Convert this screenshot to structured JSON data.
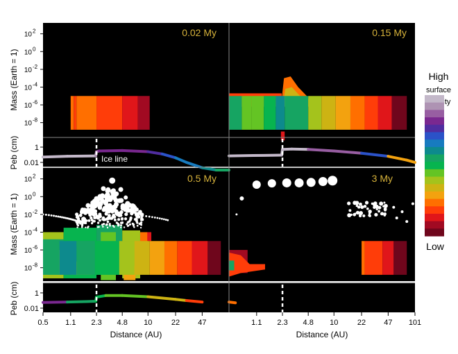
{
  "chart_data": {
    "type": "heatmap",
    "title": "",
    "xlabel": "Distance (AU)",
    "ylabel_mass": "Mass (Earth = 1)",
    "ylabel_peb": "Peb (cm)",
    "x_scale": "log",
    "x_ticks": [
      "0.5",
      "1.1",
      "2.3",
      "4.8",
      "10",
      "22",
      "47",
      "101"
    ],
    "mass_ticks": [
      "10^2",
      "10^0",
      "10^-2",
      "10^-4",
      "10^-6",
      "10^-8"
    ],
    "peb_ticks": [
      "1",
      "0.01"
    ],
    "ice_line_au": 2.3,
    "ice_line_label": "Ice line",
    "colorbar": {
      "high_label": [
        "High",
        "surface",
        "density"
      ],
      "low_label": "Low",
      "colors": [
        "#c3b8c9",
        "#ae93b3",
        "#985ea2",
        "#7a2890",
        "#502da0",
        "#2b52c8",
        "#177bbf",
        "#0d8a8d",
        "#16a462",
        "#07b44f",
        "#64c424",
        "#a4c31c",
        "#cdb313",
        "#f3a20f",
        "#ff6f00",
        "#ff3d09",
        "#e0161a",
        "#a10a22",
        "#6f061c"
      ]
    },
    "panels": [
      {
        "id": "p1",
        "time": "0.02 My",
        "strip": [
          [
            1.1,
            1.2,
            "#ff6f00"
          ],
          [
            1.2,
            1.3,
            "#ff3d09"
          ],
          [
            1.3,
            2.3,
            "#ff6f00"
          ],
          [
            2.3,
            4.8,
            "#ff3d09"
          ],
          [
            4.8,
            7.5,
            "#e0161a"
          ],
          [
            7.5,
            10.5,
            "#a10a22"
          ]
        ],
        "pebble": {
          "x": [
            0.5,
            1.0,
            2.25,
            2.3,
            2.5,
            4.8,
            10,
            15,
            22,
            30,
            47,
            70,
            101
          ],
          "logs": [
            -1.3,
            -1.2,
            -1.15,
            -0.6,
            -0.5,
            -0.45,
            -0.6,
            -0.9,
            -1.4,
            -2.0,
            -2.7,
            -3.0,
            -3.0
          ]
        }
      },
      {
        "id": "p2",
        "time": "0.15 My",
        "strip": [
          [
            0.5,
            0.72,
            "#16a462"
          ],
          [
            0.72,
            0.95,
            "#64c424"
          ],
          [
            0.95,
            1.35,
            "#64c424"
          ],
          [
            1.35,
            1.9,
            "#07b44f"
          ],
          [
            1.9,
            2.45,
            "#0d8a8d"
          ],
          [
            2.45,
            4.8,
            "#16a462"
          ],
          [
            4.8,
            7.0,
            "#a4c31c"
          ],
          [
            7.0,
            10.5,
            "#cdb313"
          ],
          [
            10.5,
            16,
            "#f3a20f"
          ],
          [
            16,
            24,
            "#ff6f00"
          ],
          [
            24,
            35,
            "#ff3d09"
          ],
          [
            35,
            52,
            "#e0161a"
          ],
          [
            52,
            80,
            "#6f061c"
          ]
        ],
        "pebble": {
          "x": [
            0.5,
            1.0,
            2.25,
            2.3,
            3,
            4.8,
            10,
            22,
            47,
            80,
            101
          ],
          "logs": [
            -1.15,
            -1.1,
            -1.05,
            -0.3,
            -0.25,
            -0.3,
            -0.5,
            -0.8,
            -1.2,
            -1.7,
            -2.0
          ]
        }
      },
      {
        "id": "p3",
        "time": "0.5 My",
        "strip": [
          [
            0.5,
            0.8,
            "#16a462"
          ],
          [
            0.8,
            1.3,
            "#0d8a8d"
          ],
          [
            1.3,
            2.2,
            "#16a462"
          ],
          [
            2.2,
            4.4,
            "#07b44f"
          ],
          [
            4.4,
            6.8,
            "#a4c31c"
          ],
          [
            6.8,
            10.5,
            "#cdb313"
          ],
          [
            10.5,
            16,
            "#f3a20f"
          ],
          [
            16,
            23,
            "#ff6f00"
          ],
          [
            23,
            35,
            "#ff3d09"
          ],
          [
            35,
            55,
            "#e0161a"
          ],
          [
            55,
            80,
            "#6f061c"
          ]
        ],
        "pebble": {
          "x": [
            0.5,
            1.0,
            2.25,
            2.3,
            3,
            4.8,
            10,
            22,
            30,
            47
          ],
          "logs": [
            -1.25,
            -1.2,
            -1.1,
            -0.55,
            -0.35,
            -0.35,
            -0.5,
            -0.85,
            -1.0,
            -1.2
          ]
        }
      },
      {
        "id": "p4",
        "time": "3 My",
        "strip": [
          [
            22,
            24,
            "#ff6f00"
          ],
          [
            24,
            40,
            "#ff3d09"
          ],
          [
            40,
            55,
            "#e0161a"
          ],
          [
            55,
            80,
            "#6f061c"
          ]
        ],
        "pebble": {
          "x": [
            0.5,
            0.6
          ],
          "logs": [
            -1.2,
            -1.3
          ]
        }
      }
    ]
  }
}
